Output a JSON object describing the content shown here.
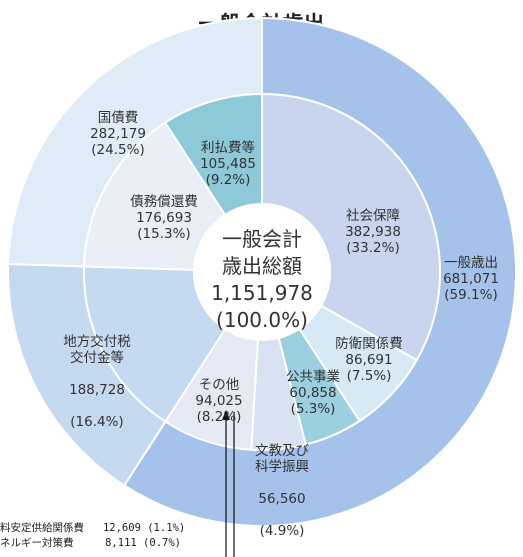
{
  "chart_data": {
    "type": "pie",
    "title": "一般会計歳出",
    "center": {
      "line1": "一般会計",
      "line2": "歳出総額",
      "value": "1,151,978",
      "pct": "(100.0%)"
    },
    "outer": [
      {
        "name": "一般歳出",
        "value": 681071,
        "value_label": "681,071",
        "pct_label": "(59.1%)",
        "color": "#a4c2ea"
      },
      {
        "name": "地方交付税\n交付金等",
        "value": 188728,
        "value_label": "188,728",
        "pct_label": "(16.4%)",
        "color": "#c5d9f1"
      },
      {
        "name": "国債費",
        "value": 282179,
        "value_label": "282,179",
        "pct_label": "(24.5%)",
        "color": "#dfecf7"
      }
    ],
    "inner": [
      {
        "name": "社会保障",
        "value": 382938,
        "value_label": "382,938",
        "pct_label": "(33.2%)",
        "color": "#c9d5ef"
      },
      {
        "name": "防衛関係費",
        "value": 86691,
        "value_label": "86,691",
        "pct_label": "(7.5%)",
        "color": "#d6e9f5"
      },
      {
        "name": "公共事業",
        "value": 60858,
        "value_label": "60,858",
        "pct_label": "(5.3%)",
        "color": "#9ccfe0"
      },
      {
        "name": "文教及び\n科学振興",
        "value": 56560,
        "value_label": "56,560",
        "pct_label": "(4.9%)",
        "color": "#d9e2f2"
      },
      {
        "name": "その他",
        "value": 94025,
        "value_label": "94,025",
        "pct_label": "(8.2%)",
        "color": "#e4e9f3"
      },
      {
        "name": "地方交付税交付金等",
        "value": 188728,
        "color": "#c5d9f1"
      },
      {
        "name": "債務償還費",
        "value": 176693,
        "value_label": "176,693",
        "pct_label": "(15.3%)",
        "color": "#e9eef7"
      },
      {
        "name": "利払費等",
        "value": 105485,
        "value_label": "105,485",
        "pct_label": "(9.2%)",
        "color": "#8ec9d8"
      }
    ],
    "notes": [
      {
        "label": "料安定供給関係費",
        "value": "12,609",
        "pct": "(1.1%)"
      },
      {
        "label": "ネルギー対策費",
        "value": "8,111",
        "pct": "(0.7%)"
      }
    ]
  }
}
